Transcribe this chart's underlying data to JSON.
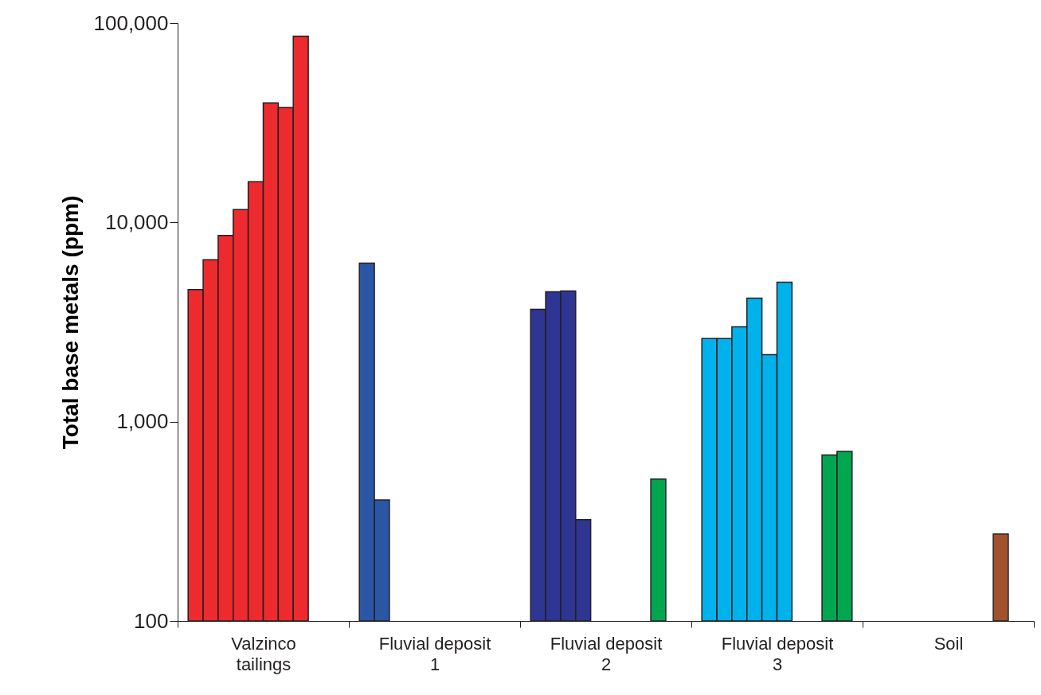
{
  "chart_data": {
    "type": "bar",
    "ylabel": "Total base metals (ppm)",
    "log": true,
    "grid": false,
    "categories": [
      "Valzinco tailings",
      "Fluvial deposit 1",
      "Fluvial deposit 2",
      "Fluvial deposit 3",
      "Soil"
    ],
    "ylim": [
      100,
      100000
    ],
    "yticks": [
      100,
      {
        "value": 1000,
        "label": "1,000"
      },
      {
        "value": 10000,
        "label": "10,000"
      },
      {
        "value": 100000,
        "label": "100,000"
      }
    ],
    "series": [
      {
        "values": [
          4600,
          6250,
          3660,
          2610,
          null
        ],
        "colors": [
          "#ed2a2e",
          "#2b56a6",
          "#2e3592",
          "#00b2ec",
          null
        ]
      },
      {
        "values": [
          6500,
          405,
          4490,
          2610,
          null
        ],
        "colors": [
          "#ed2a2e",
          "#2b56a6",
          "#2e3592",
          "#00b2ec",
          null
        ]
      },
      {
        "values": [
          8600,
          null,
          4530,
          2990,
          null
        ],
        "colors": [
          "#ed2a2e",
          null,
          "#2e3592",
          "#00b2ec",
          null
        ]
      },
      {
        "values": [
          11600,
          null,
          322,
          4170,
          null
        ],
        "colors": [
          "#ed2a2e",
          null,
          "#2e3592",
          "#00b2ec",
          null
        ]
      },
      {
        "values": [
          16000,
          null,
          null,
          2170,
          null
        ],
        "colors": [
          "#ed2a2e",
          null,
          null,
          "#00b2ec",
          null
        ]
      },
      {
        "values": [
          39800,
          null,
          null,
          5010,
          null
        ],
        "colors": [
          "#ed2a2e",
          null,
          null,
          "#00b2ec",
          null
        ]
      },
      {
        "values": [
          37700,
          null,
          null,
          null,
          null
        ],
        "colors": [
          "#ed2a2e",
          null,
          null,
          null,
          null
        ]
      },
      {
        "values": [
          86000,
          null,
          null,
          null,
          null
        ],
        "colors": [
          "#ed2a2e",
          null,
          null,
          null,
          null
        ]
      },
      {
        "values": [
          null,
          null,
          515,
          680,
          273
        ],
        "colors": [
          null,
          null,
          "#00a650",
          "#00a650",
          "#a0522d"
        ]
      },
      {
        "values": [
          null,
          null,
          null,
          710,
          null
        ],
        "colors": [
          null,
          null,
          null,
          "#00a650",
          null
        ]
      }
    ]
  }
}
